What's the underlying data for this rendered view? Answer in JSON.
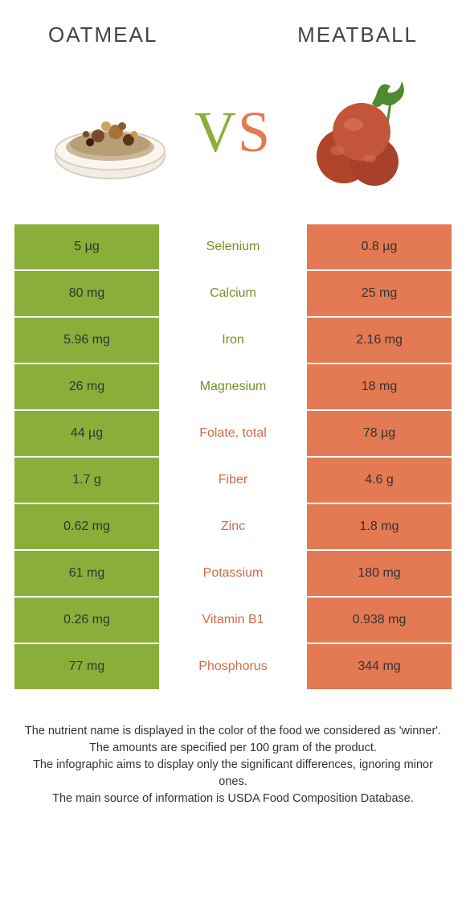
{
  "header": {
    "left": "OATMEAL",
    "right": "MEATBALL"
  },
  "vs": {
    "v": "V",
    "s": "S"
  },
  "colors": {
    "green": "#8aae3a",
    "orange": "#e37a54",
    "mid_green": "#6f9327",
    "mid_orange": "#cf6a46"
  },
  "rows": [
    {
      "left": "5 µg",
      "label": "Selenium",
      "right": "0.8 µg",
      "winner": "green"
    },
    {
      "left": "80 mg",
      "label": "Calcium",
      "right": "25 mg",
      "winner": "green"
    },
    {
      "left": "5.96 mg",
      "label": "Iron",
      "right": "2.16 mg",
      "winner": "green"
    },
    {
      "left": "26 mg",
      "label": "Magnesium",
      "right": "18 mg",
      "winner": "green"
    },
    {
      "left": "44 µg",
      "label": "Folate, total",
      "right": "78 µg",
      "winner": "orange"
    },
    {
      "left": "1.7 g",
      "label": "Fiber",
      "right": "4.6 g",
      "winner": "orange"
    },
    {
      "left": "0.62 mg",
      "label": "Zinc",
      "right": "1.8 mg",
      "winner": "orange"
    },
    {
      "left": "61 mg",
      "label": "Potassium",
      "right": "180 mg",
      "winner": "orange"
    },
    {
      "left": "0.26 mg",
      "label": "Vitamin B1",
      "right": "0.938 mg",
      "winner": "orange"
    },
    {
      "left": "77 mg",
      "label": "Phosphorus",
      "right": "344 mg",
      "winner": "orange"
    }
  ],
  "footnotes": [
    "The nutrient name is displayed in the color of the food we considered as 'winner'.",
    "The amounts are specified per 100 gram of the product.",
    "The infographic aims to display only the significant differences, ignoring minor ones.",
    "The main source of information is USDA Food Composition Database."
  ]
}
